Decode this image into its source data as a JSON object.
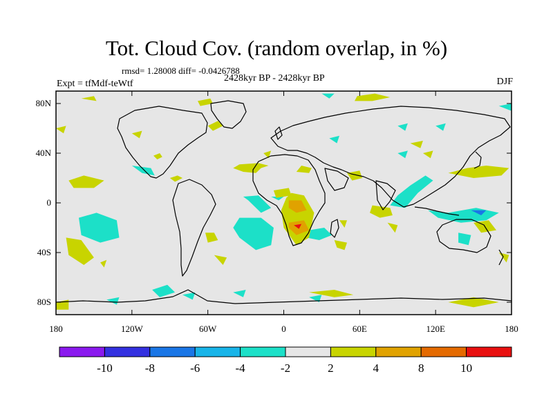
{
  "title": "Tot. Cloud Cov. (random overlap, in %)",
  "stats_text": "rmsd= 1.28008 diff= -0.0426788",
  "period": "2428kyr BP - 2428kyr BP",
  "experiment": "Expt = tfMdf-teWtf",
  "season": "DJF",
  "map": {
    "lon_ticks": [
      {
        "lon": -180,
        "label": "180"
      },
      {
        "lon": -120,
        "label": "120W"
      },
      {
        "lon": -60,
        "label": "60W"
      },
      {
        "lon": 0,
        "label": "0"
      },
      {
        "lon": 60,
        "label": "60E"
      },
      {
        "lon": 120,
        "label": "120E"
      },
      {
        "lon": 180,
        "label": "180"
      }
    ],
    "lat_ticks": [
      {
        "lat": 80,
        "label": "80N"
      },
      {
        "lat": 40,
        "label": "40N"
      },
      {
        "lat": 0,
        "label": "0"
      },
      {
        "lat": -40,
        "label": "40S"
      },
      {
        "lat": -80,
        "label": "80S"
      }
    ],
    "background_color": "#e6e6e6"
  },
  "colorbar": {
    "colors": [
      "#8a19ee",
      "#3330e0",
      "#1a76e6",
      "#18b4e8",
      "#1ce0c8",
      "#e6e6e6",
      "#c8d400",
      "#e0a200",
      "#e46a00",
      "#e81010"
    ],
    "labels": [
      "-10",
      "-8",
      "-6",
      "-4",
      "-2",
      "2",
      "4",
      "8",
      "10"
    ]
  },
  "anomalies": [
    {
      "cls": "4",
      "pts": [
        [
          -40,
          28
        ],
        [
          -32,
          25
        ],
        [
          -22,
          24
        ],
        [
          -18,
          28
        ],
        [
          -12,
          30
        ],
        [
          -20,
          32
        ],
        [
          -35,
          31
        ]
      ]
    },
    {
      "cls": "4",
      "pts": [
        [
          10,
          25
        ],
        [
          20,
          24
        ],
        [
          22,
          28
        ],
        [
          14,
          30
        ]
      ]
    },
    {
      "cls": "4",
      "pts": [
        [
          -170,
          18
        ],
        [
          -158,
          22
        ],
        [
          -142,
          18
        ],
        [
          -150,
          12
        ],
        [
          -166,
          12
        ]
      ]
    },
    {
      "cls": "4",
      "pts": [
        [
          -172,
          -28
        ],
        [
          -160,
          -30
        ],
        [
          -150,
          -44
        ],
        [
          -158,
          -50
        ],
        [
          -170,
          -42
        ]
      ]
    },
    {
      "cls": "4",
      "pts": [
        [
          -145,
          -48
        ],
        [
          -140,
          -46
        ],
        [
          -142,
          -52
        ]
      ]
    },
    {
      "cls": "4",
      "pts": [
        [
          -90,
          20
        ],
        [
          -84,
          22
        ],
        [
          -80,
          20
        ],
        [
          -86,
          17
        ]
      ]
    },
    {
      "cls": "4",
      "pts": [
        [
          -103,
          38
        ],
        [
          -98,
          40
        ],
        [
          -96,
          37
        ],
        [
          -100,
          35
        ]
      ]
    },
    {
      "cls": "-4",
      "pts": [
        [
          -32,
          5
        ],
        [
          -20,
          6
        ],
        [
          -10,
          -4
        ],
        [
          -18,
          -8
        ],
        [
          -28,
          2
        ]
      ]
    },
    {
      "cls": "-4",
      "pts": [
        [
          -120,
          30
        ],
        [
          -105,
          28
        ],
        [
          -102,
          22
        ],
        [
          -112,
          24
        ]
      ]
    },
    {
      "cls": "-4",
      "pts": [
        [
          -10,
          5
        ],
        [
          0,
          5
        ],
        [
          -4,
          2
        ]
      ]
    },
    {
      "cls": "-4",
      "pts": [
        [
          -162,
          -12
        ],
        [
          -148,
          -8
        ],
        [
          -132,
          -14
        ],
        [
          -130,
          -28
        ],
        [
          -145,
          -32
        ],
        [
          -160,
          -26
        ]
      ]
    },
    {
      "cls": "-4",
      "pts": [
        [
          -35,
          -12
        ],
        [
          -18,
          -12
        ],
        [
          -8,
          -20
        ],
        [
          -10,
          -34
        ],
        [
          -22,
          -38
        ],
        [
          -35,
          -28
        ],
        [
          -40,
          -20
        ]
      ]
    },
    {
      "cls": "4",
      "pts": [
        [
          -62,
          -24
        ],
        [
          -55,
          -24
        ],
        [
          -52,
          -30
        ],
        [
          -60,
          -32
        ]
      ]
    },
    {
      "cls": "-4",
      "pts": [
        [
          20,
          -22
        ],
        [
          32,
          -20
        ],
        [
          38,
          -26
        ],
        [
          28,
          -30
        ],
        [
          18,
          -28
        ]
      ]
    },
    {
      "cls": "4",
      "pts": [
        [
          6,
          8
        ],
        [
          16,
          6
        ],
        [
          24,
          -8
        ],
        [
          20,
          -28
        ],
        [
          10,
          -34
        ],
        [
          0,
          -20
        ],
        [
          -2,
          -6
        ],
        [
          2,
          4
        ]
      ]
    },
    {
      "cls": "4",
      "pts": [
        [
          -8,
          10
        ],
        [
          4,
          12
        ],
        [
          6,
          6
        ],
        [
          -6,
          4
        ]
      ]
    },
    {
      "cls": "4",
      "pts": [
        [
          40,
          -30
        ],
        [
          50,
          -32
        ],
        [
          48,
          -38
        ],
        [
          42,
          -36
        ]
      ]
    },
    {
      "cls": "4",
      "pts": [
        [
          44,
          -14
        ],
        [
          50,
          -14
        ],
        [
          48,
          -20
        ]
      ]
    },
    {
      "cls": "8",
      "pts": [
        [
          4,
          2
        ],
        [
          14,
          2
        ],
        [
          18,
          -6
        ],
        [
          10,
          -8
        ],
        [
          4,
          -4
        ]
      ]
    },
    {
      "cls": "8",
      "pts": [
        [
          4,
          -16
        ],
        [
          16,
          -14
        ],
        [
          20,
          -22
        ],
        [
          10,
          -26
        ],
        [
          4,
          -20
        ]
      ]
    },
    {
      "cls": "10",
      "pts": [
        [
          8,
          -18
        ],
        [
          14,
          -17
        ],
        [
          12,
          -21
        ]
      ]
    },
    {
      "cls": "-4",
      "pts": [
        [
          84,
          -2
        ],
        [
          96,
          -4
        ],
        [
          106,
          8
        ],
        [
          118,
          18
        ],
        [
          112,
          22
        ],
        [
          100,
          14
        ],
        [
          90,
          6
        ]
      ]
    },
    {
      "cls": "-4",
      "pts": [
        [
          114,
          -6
        ],
        [
          130,
          -8
        ],
        [
          152,
          -4
        ],
        [
          170,
          -8
        ],
        [
          160,
          -14
        ],
        [
          140,
          -16
        ],
        [
          122,
          -12
        ]
      ]
    },
    {
      "cls": "-6",
      "pts": [
        [
          148,
          -6
        ],
        [
          160,
          -6
        ],
        [
          156,
          -10
        ]
      ]
    },
    {
      "cls": "-4",
      "pts": [
        [
          138,
          -24
        ],
        [
          148,
          -26
        ],
        [
          146,
          -34
        ],
        [
          138,
          -32
        ]
      ]
    },
    {
      "cls": "-4",
      "pts": [
        [
          36,
          52
        ],
        [
          44,
          54
        ],
        [
          42,
          48
        ]
      ]
    },
    {
      "cls": "-4",
      "pts": [
        [
          90,
          40
        ],
        [
          98,
          42
        ],
        [
          96,
          36
        ]
      ]
    },
    {
      "cls": "4",
      "pts": [
        [
          70,
          -2
        ],
        [
          84,
          -4
        ],
        [
          86,
          -10
        ],
        [
          76,
          -12
        ],
        [
          68,
          -8
        ]
      ]
    },
    {
      "cls": "4",
      "pts": [
        [
          82,
          -16
        ],
        [
          90,
          -18
        ],
        [
          88,
          -24
        ]
      ]
    },
    {
      "cls": "4",
      "pts": [
        [
          50,
          24
        ],
        [
          60,
          26
        ],
        [
          62,
          20
        ],
        [
          54,
          18
        ]
      ]
    },
    {
      "cls": "4",
      "pts": [
        [
          100,
          48
        ],
        [
          110,
          50
        ],
        [
          108,
          44
        ]
      ]
    },
    {
      "cls": "-4",
      "pts": [
        [
          90,
          62
        ],
        [
          98,
          64
        ],
        [
          96,
          58
        ]
      ]
    },
    {
      "cls": "-4",
      "pts": [
        [
          120,
          62
        ],
        [
          128,
          64
        ],
        [
          126,
          58
        ]
      ]
    },
    {
      "cls": "4",
      "pts": [
        [
          -120,
          56
        ],
        [
          -112,
          58
        ],
        [
          -114,
          52
        ]
      ]
    },
    {
      "cls": "4",
      "pts": [
        [
          -60,
          62
        ],
        [
          -52,
          66
        ],
        [
          -48,
          62
        ],
        [
          -56,
          58
        ]
      ]
    },
    {
      "cls": "4",
      "pts": [
        [
          110,
          40
        ],
        [
          118,
          42
        ],
        [
          116,
          36
        ]
      ]
    },
    {
      "cls": "4",
      "pts": [
        [
          130,
          24
        ],
        [
          145,
          28
        ],
        [
          160,
          30
        ],
        [
          178,
          28
        ],
        [
          172,
          22
        ],
        [
          150,
          20
        ]
      ]
    },
    {
      "cls": "4",
      "pts": [
        [
          150,
          -16
        ],
        [
          162,
          -14
        ],
        [
          168,
          -22
        ],
        [
          156,
          -24
        ]
      ]
    },
    {
      "cls": "4",
      "pts": [
        [
          170,
          -40
        ],
        [
          178,
          -42
        ],
        [
          176,
          -48
        ]
      ]
    },
    {
      "cls": "4",
      "pts": [
        [
          -55,
          -42
        ],
        [
          -45,
          -44
        ],
        [
          -48,
          -50
        ]
      ]
    },
    {
      "cls": "4",
      "pts": [
        [
          -180,
          -80
        ],
        [
          -170,
          -78
        ],
        [
          -170,
          -86
        ],
        [
          -180,
          -86
        ]
      ]
    },
    {
      "cls": "4",
      "pts": [
        [
          20,
          -72
        ],
        [
          40,
          -70
        ],
        [
          55,
          -74
        ],
        [
          40,
          -76
        ]
      ]
    },
    {
      "cls": "4",
      "pts": [
        [
          130,
          -80
        ],
        [
          150,
          -76
        ],
        [
          170,
          -80
        ],
        [
          150,
          -84
        ]
      ]
    },
    {
      "cls": "-4",
      "pts": [
        [
          -104,
          -70
        ],
        [
          -92,
          -66
        ],
        [
          -86,
          -72
        ],
        [
          -98,
          -76
        ]
      ]
    },
    {
      "cls": "-4",
      "pts": [
        [
          -80,
          -74
        ],
        [
          -70,
          -72
        ],
        [
          -72,
          -78
        ]
      ]
    },
    {
      "cls": "-4",
      "pts": [
        [
          -40,
          -72
        ],
        [
          -30,
          -70
        ],
        [
          -32,
          -76
        ]
      ]
    },
    {
      "cls": "-4",
      "pts": [
        [
          -140,
          -78
        ],
        [
          -130,
          -76
        ],
        [
          -132,
          -82
        ]
      ]
    },
    {
      "cls": "-4",
      "pts": [
        [
          20,
          -76
        ],
        [
          30,
          -74
        ],
        [
          28,
          -80
        ]
      ]
    },
    {
      "cls": "4",
      "pts": [
        [
          -68,
          82
        ],
        [
          -58,
          84
        ],
        [
          -56,
          80
        ],
        [
          -66,
          78
        ]
      ]
    },
    {
      "cls": "4",
      "pts": [
        [
          -160,
          84
        ],
        [
          -150,
          86
        ],
        [
          -148,
          82
        ]
      ]
    },
    {
      "cls": "4",
      "pts": [
        [
          58,
          86
        ],
        [
          72,
          88
        ],
        [
          84,
          85
        ],
        [
          70,
          82
        ],
        [
          56,
          82
        ]
      ]
    },
    {
      "cls": "-4",
      "pts": [
        [
          30,
          88
        ],
        [
          40,
          88
        ],
        [
          36,
          84
        ]
      ]
    },
    {
      "cls": "4",
      "pts": [
        [
          -16,
          40
        ],
        [
          -10,
          42
        ],
        [
          -12,
          36
        ]
      ]
    },
    {
      "cls": "-4",
      "pts": [
        [
          170,
          78
        ],
        [
          180,
          80
        ],
        [
          180,
          74
        ]
      ]
    },
    {
      "cls": "4",
      "pts": [
        [
          -180,
          60
        ],
        [
          -172,
          62
        ],
        [
          -174,
          56
        ]
      ]
    }
  ]
}
